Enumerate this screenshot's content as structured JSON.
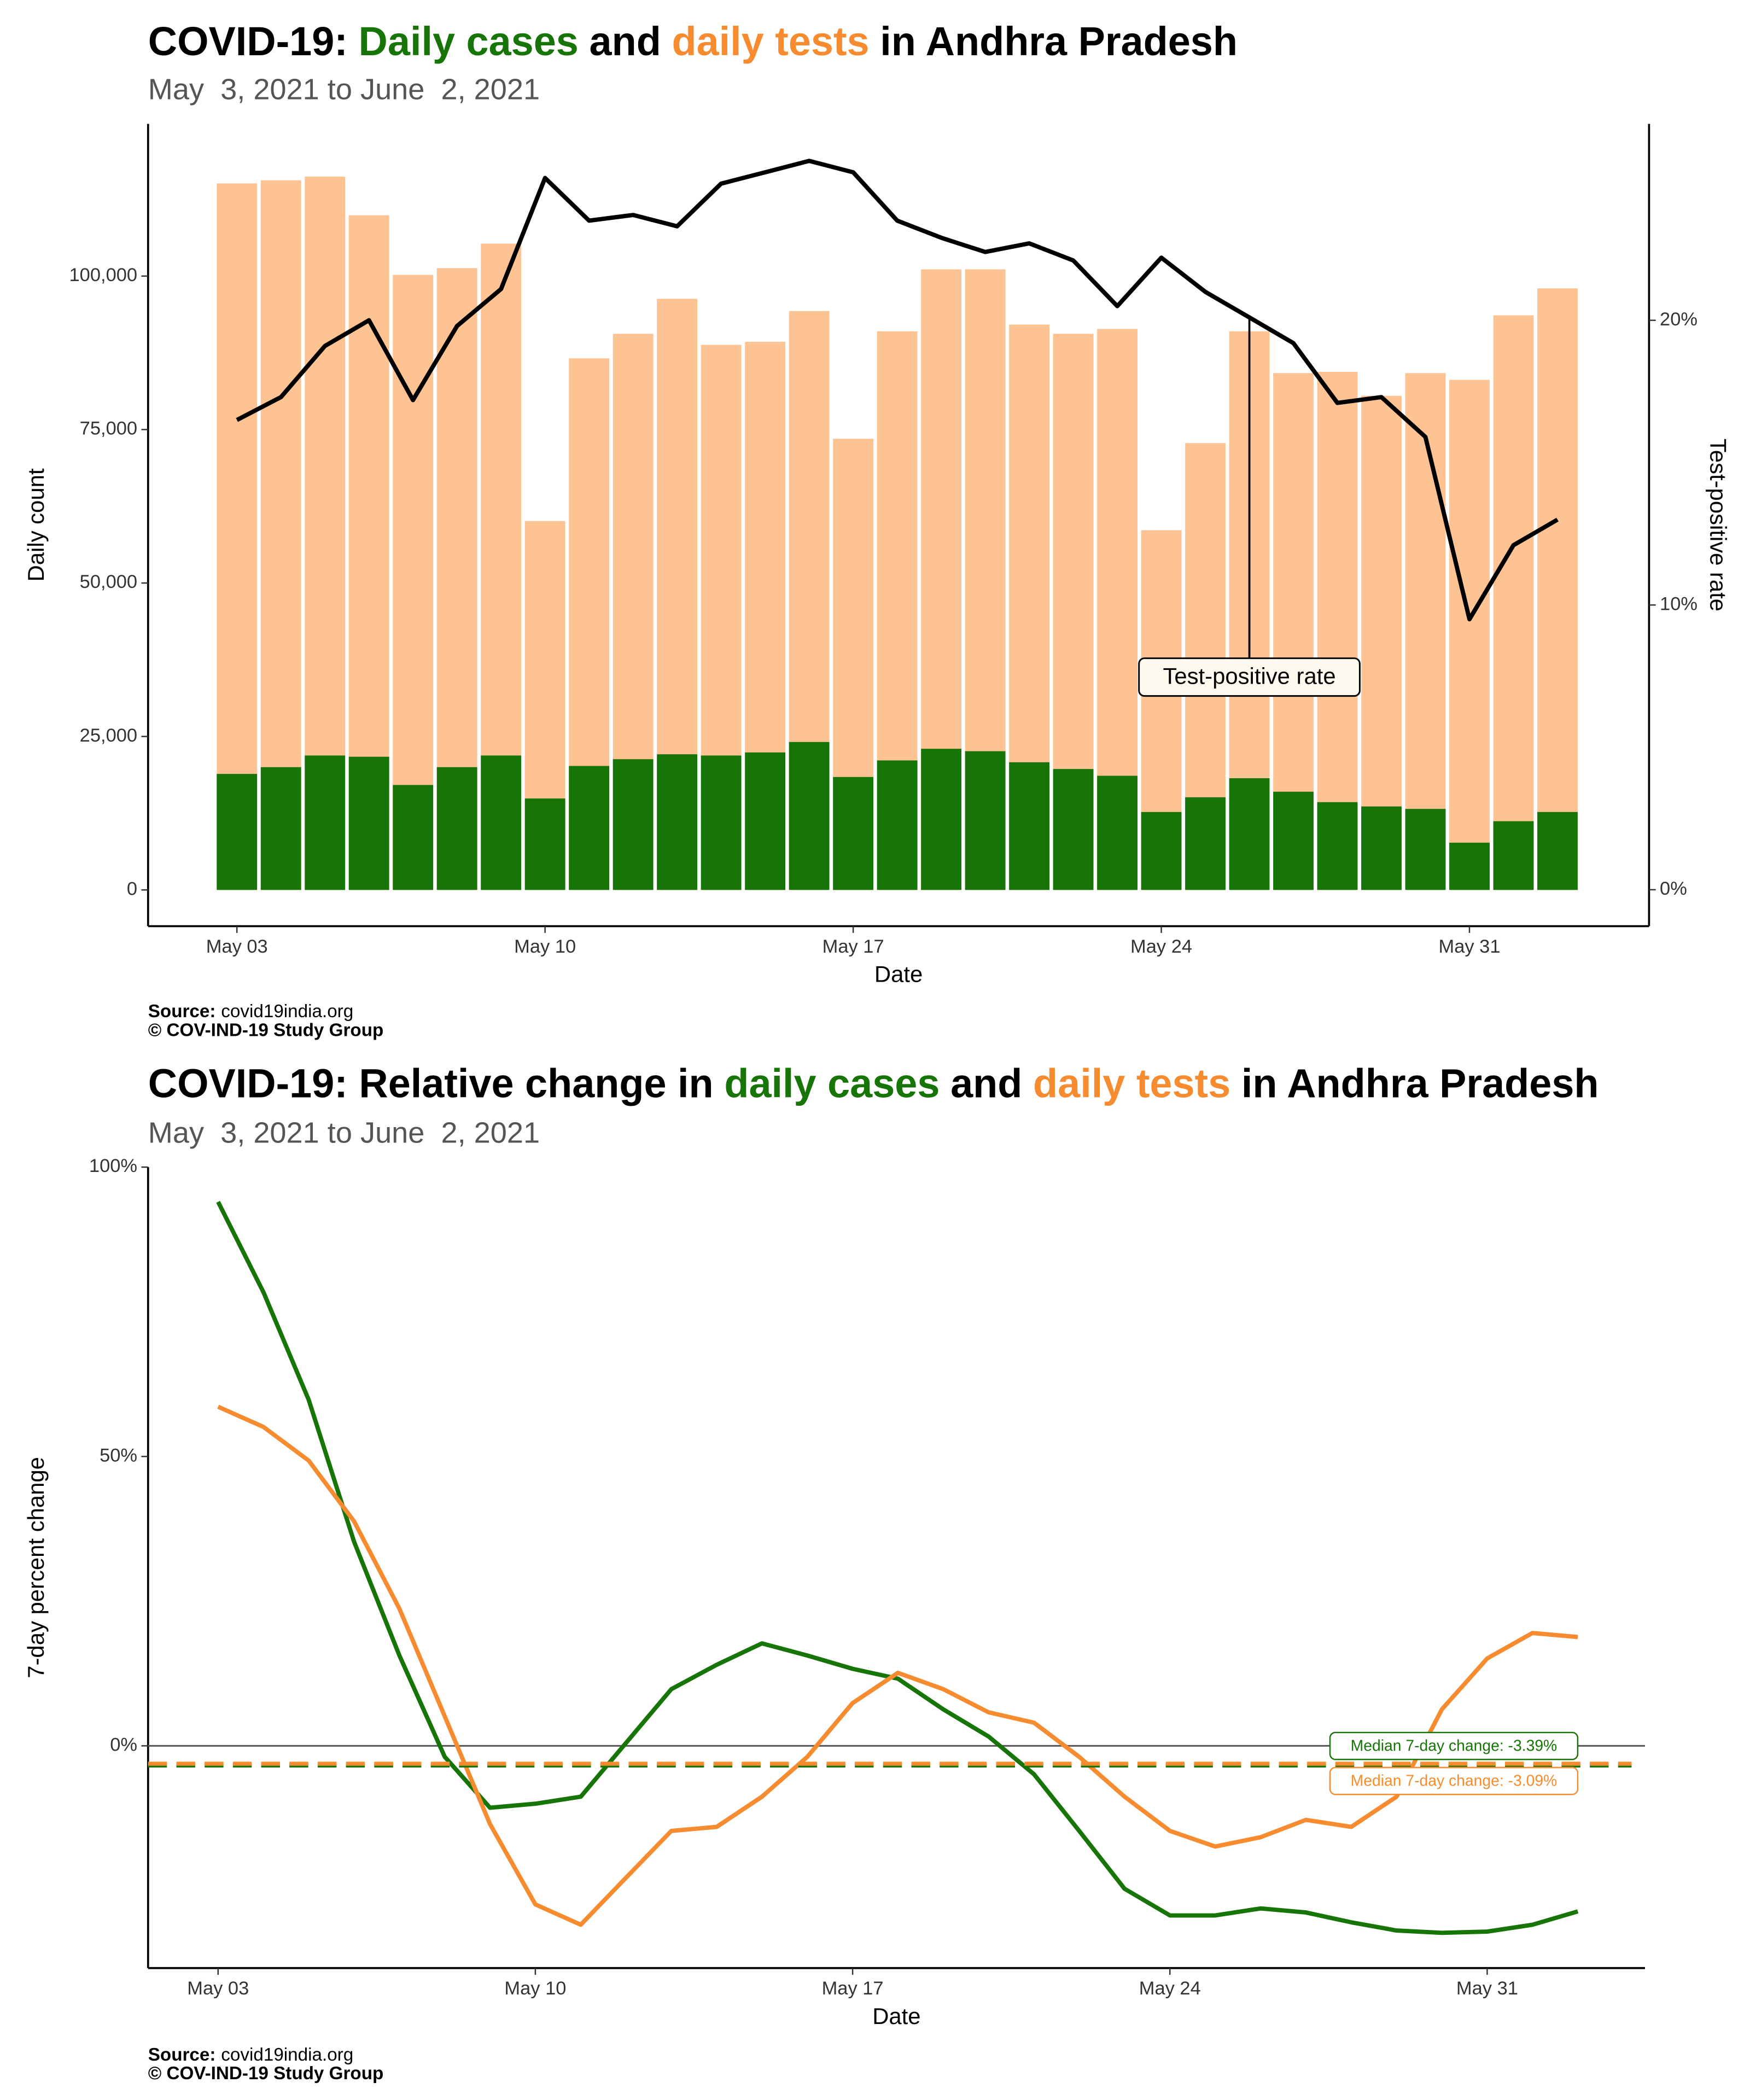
{
  "chart_data": [
    {
      "type": "bar",
      "title": [
        {
          "text": "COVID-19:"
        },
        {
          "text": "Daily cases",
          "color": "#177407"
        },
        {
          "text": "and"
        },
        {
          "text": "daily tests",
          "color": "#f68c2f"
        },
        {
          "text": "in Andhra Pradesh"
        }
      ],
      "subtitle": "May  3, 2021 to June  2, 2021",
      "xlabel": "Date",
      "ylabel": "Daily count",
      "y2label": "Test-positive rate",
      "x": [
        "May 03",
        "May 04",
        "May 05",
        "May 06",
        "May 07",
        "May 08",
        "May 09",
        "May 10",
        "May 11",
        "May 12",
        "May 13",
        "May 14",
        "May 15",
        "May 16",
        "May 17",
        "May 18",
        "May 19",
        "May 20",
        "May 21",
        "May 22",
        "May 23",
        "May 24",
        "May 25",
        "May 26",
        "May 27",
        "May 28",
        "May 29",
        "May 30",
        "May 31",
        "Jun 01",
        "Jun 02"
      ],
      "xticks": [
        "May 03",
        "May 10",
        "May 17",
        "May 24",
        "May 31"
      ],
      "ylim": [
        -5900,
        124800
      ],
      "yticks": [
        0,
        {
          "value": 25000,
          "label": "25,000"
        },
        {
          "value": 50000,
          "label": "50,000"
        },
        {
          "value": 75000,
          "label": "75,000"
        },
        {
          "value": 100000,
          "label": "100,000"
        }
      ],
      "y2lim": [
        -1.28,
        26.9
      ],
      "y2ticks": [
        {
          "value": 0,
          "label": "0%"
        },
        {
          "value": 10,
          "label": "10%"
        },
        {
          "value": 20,
          "label": "20%"
        }
      ],
      "series": [
        {
          "type": "bar",
          "color": "#fdc393",
          "values": [
            115100,
            115600,
            116200,
            109900,
            100200,
            101300,
            105300,
            60100,
            86600,
            90600,
            96300,
            88800,
            89300,
            94300,
            73500,
            91000,
            101100,
            101100,
            92100,
            90600,
            91400,
            58600,
            72800,
            91000,
            84200,
            84400,
            80500,
            84200,
            83100,
            93600,
            98000
          ]
        },
        {
          "type": "bar",
          "color": "#177407",
          "values": [
            18900,
            20000,
            21900,
            21700,
            17100,
            20000,
            21900,
            14900,
            20200,
            21300,
            22100,
            21900,
            22400,
            24100,
            18400,
            21100,
            23000,
            22600,
            20800,
            19700,
            18600,
            12700,
            15100,
            18200,
            16000,
            14300,
            13600,
            13200,
            7700,
            11200,
            12700
          ]
        },
        {
          "type": "line",
          "axis": "y2",
          "color": "#000000",
          "values": [
            16.5,
            17.3,
            19.1,
            20.0,
            17.2,
            19.8,
            21.1,
            25.0,
            23.5,
            23.7,
            23.3,
            24.8,
            25.2,
            25.6,
            25.2,
            23.5,
            22.9,
            22.4,
            22.7,
            22.1,
            20.5,
            22.2,
            21.0,
            20.1,
            19.2,
            17.1,
            17.3,
            15.9,
            9.5,
            12.1,
            13.0
          ]
        }
      ],
      "annotation": {
        "text": "Test-positive rate",
        "x": "May 26"
      },
      "source_label": "Source:",
      "source": "covid19india.org",
      "copyright": "© COV-IND-19 Study Group"
    },
    {
      "type": "line",
      "title": [
        {
          "text": "COVID-19: Relative change in"
        },
        {
          "text": "daily cases",
          "color": "#177407"
        },
        {
          "text": "and"
        },
        {
          "text": "daily tests",
          "color": "#f68c2f"
        },
        {
          "text": "in Andhra Pradesh"
        }
      ],
      "subtitle": "May  3, 2021 to June  2, 2021",
      "xlabel": "Date",
      "ylabel": "7-day percent change",
      "x": [
        "May 03",
        "May 04",
        "May 05",
        "May 06",
        "May 07",
        "May 08",
        "May 09",
        "May 10",
        "May 11",
        "May 12",
        "May 13",
        "May 14",
        "May 15",
        "May 16",
        "May 17",
        "May 18",
        "May 19",
        "May 20",
        "May 21",
        "May 22",
        "May 23",
        "May 24",
        "May 25",
        "May 26",
        "May 27",
        "May 28",
        "May 29",
        "May 30",
        "May 31",
        "Jun 01",
        "Jun 02"
      ],
      "xticks": [
        "May 03",
        "May 10",
        "May 17",
        "May 24",
        "May 31"
      ],
      "ylim": [
        -38.4,
        100
      ],
      "yticks": [
        {
          "value": 0,
          "label": "0%"
        },
        {
          "value": 50,
          "label": "50%"
        },
        {
          "value": 100,
          "label": "100%"
        }
      ],
      "hline": 0,
      "series": [
        {
          "color": "#177407",
          "values": [
            94.0,
            78.4,
            59.8,
            35.3,
            15.6,
            -1.9,
            -10.7,
            -10.0,
            -8.8,
            0.5,
            9.8,
            14.0,
            17.7,
            15.6,
            13.3,
            11.6,
            6.3,
            1.6,
            -4.9,
            -14.7,
            -24.7,
            -29.3,
            -29.3,
            -28.1,
            -28.8,
            -30.5,
            -31.9,
            -32.3,
            -32.1,
            -30.9,
            -28.6
          ]
        },
        {
          "color": "#f68c2f",
          "values": [
            58.6,
            55.1,
            49.3,
            38.8,
            23.7,
            5.1,
            -13.5,
            -27.4,
            -30.9,
            -22.8,
            -14.7,
            -14.0,
            -8.8,
            -1.9,
            7.4,
            12.6,
            9.8,
            5.8,
            4.0,
            -1.9,
            -8.8,
            -14.7,
            -17.4,
            -15.8,
            -12.8,
            -14.0,
            -8.8,
            6.3,
            15.1,
            19.5,
            18.8
          ]
        }
      ],
      "medians": [
        {
          "value": -3.39,
          "label": "Median 7-day change: -3.39%",
          "color": "#177407"
        },
        {
          "value": -3.09,
          "label": "Median 7-day change: -3.09%",
          "color": "#f68c2f"
        }
      ],
      "source_label": "Source:",
      "source": "covid19india.org",
      "copyright": "© COV-IND-19 Study Group"
    }
  ]
}
